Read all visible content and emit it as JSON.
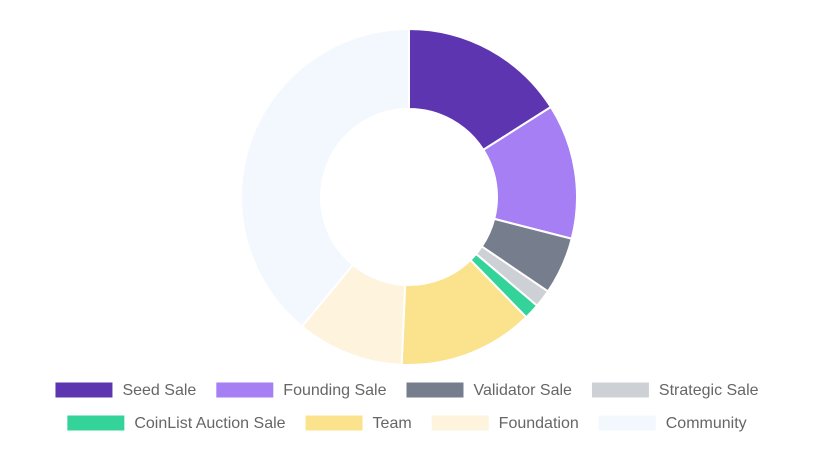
{
  "chart_data": {
    "type": "doughnut",
    "categories": [
      "Seed Sale",
      "Founding Sale",
      "Validator Sale",
      "Strategic Sale",
      "CoinList Auction Sale",
      "Team",
      "Foundation",
      "Community"
    ],
    "values": [
      16,
      13,
      5.5,
      1.7,
      1.5,
      13,
      10.3,
      39
    ],
    "colors": [
      "#5e35b1",
      "#a77ff5",
      "#767e8e",
      "#cdd0d4",
      "#34d399",
      "#fbe38e",
      "#fef3dc",
      "#f3f8fe"
    ],
    "legend": "bottom"
  }
}
